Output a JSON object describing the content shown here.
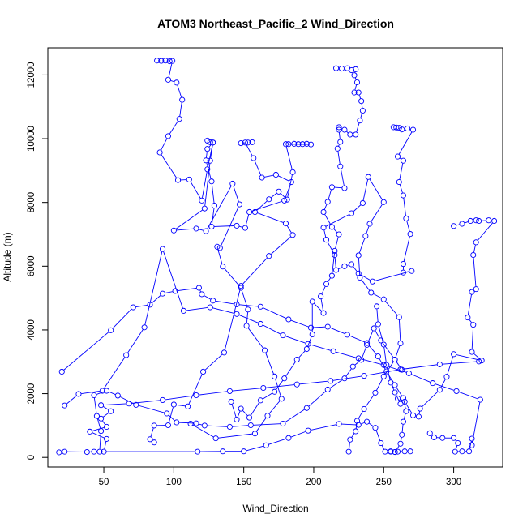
{
  "chart_data": {
    "type": "line",
    "title": "ATOM3 Northeast_Pacific_2 Wind_Direction",
    "xlabel": "Wind_Direction",
    "ylabel": "Altitude (m)",
    "xlim": [
      10,
      335
    ],
    "ylim": [
      -300,
      12850
    ],
    "x_ticks": [
      50,
      100,
      150,
      200,
      250,
      300
    ],
    "x_tick_labels": [
      "50",
      "100",
      "150",
      "200",
      "250",
      "300"
    ],
    "y_ticks": [
      0,
      2000,
      4000,
      6000,
      8000,
      10000,
      12000
    ],
    "y_tick_labels": [
      "0",
      "2000",
      "4000",
      "6000",
      "8000",
      "10000",
      "12000"
    ],
    "grid": false,
    "legend": "none",
    "series_color": "#0000ff",
    "marker": "open-circle",
    "series": [
      {
        "values": [
          [
            88,
            12450
          ],
          [
            91,
            12440
          ],
          [
            94,
            12450
          ],
          [
            97,
            12430
          ],
          [
            99,
            12440
          ],
          [
            96,
            11850
          ],
          [
            102,
            11760
          ],
          [
            106,
            11220
          ],
          [
            104,
            10620
          ],
          [
            96,
            10080
          ],
          [
            90,
            9570
          ],
          [
            103,
            8700
          ],
          [
            111,
            8720
          ],
          [
            120,
            8060
          ],
          [
            124,
            9040
          ],
          [
            128,
            9880
          ],
          [
            126,
            9310
          ],
          [
            122,
            7810
          ],
          [
            100,
            7120
          ],
          [
            116,
            7180
          ],
          [
            123,
            7100
          ],
          [
            142,
            8590
          ],
          [
            147,
            7940
          ],
          [
            133,
            6570
          ],
          [
            131,
            6610
          ],
          [
            135,
            5990
          ],
          [
            148,
            5320
          ],
          [
            153,
            4640
          ],
          [
            152,
            4130
          ],
          [
            165,
            3360
          ],
          [
            172,
            2540
          ],
          [
            177,
            1840
          ],
          [
            167,
            1310
          ],
          [
            158,
            750
          ],
          [
            130,
            600
          ],
          [
            112,
            1060
          ]
        ]
      },
      {
        "values": [
          [
            124,
            9940
          ],
          [
            126,
            9890
          ],
          [
            128,
            9880
          ],
          [
            124,
            9680
          ],
          [
            123,
            9320
          ],
          [
            127,
            8660
          ],
          [
            129,
            7900
          ],
          [
            127,
            7240
          ],
          [
            145,
            7270
          ],
          [
            151,
            7200
          ],
          [
            154,
            7700
          ],
          [
            179,
            8060
          ],
          [
            184,
            8640
          ],
          [
            173,
            8870
          ],
          [
            163,
            8780
          ],
          [
            157,
            9390
          ],
          [
            151,
            9880
          ],
          [
            148,
            9860
          ],
          [
            153,
            9880
          ],
          [
            156,
            9890
          ]
        ]
      },
      {
        "values": [
          [
            182,
            9830
          ],
          [
            186,
            9840
          ],
          [
            189,
            9830
          ],
          [
            192,
            9830
          ],
          [
            195,
            9840
          ],
          [
            198,
            9820
          ],
          [
            180,
            9830
          ],
          [
            185,
            8950
          ],
          [
            181,
            8090
          ],
          [
            175,
            8340
          ],
          [
            168,
            8100
          ],
          [
            158,
            7700
          ],
          [
            180,
            7340
          ],
          [
            185,
            6980
          ],
          [
            168,
            6320
          ],
          [
            148,
            5380
          ],
          [
            136,
            3290
          ],
          [
            121,
            2690
          ],
          [
            110,
            1600
          ],
          [
            100,
            1660
          ],
          [
            96,
            1010
          ],
          [
            86,
            1000
          ],
          [
            83,
            570
          ],
          [
            86,
            470
          ]
        ]
      },
      {
        "values": [
          [
            216,
            12210
          ],
          [
            220,
            12200
          ],
          [
            224,
            12210
          ],
          [
            227,
            12150
          ],
          [
            230,
            12180
          ],
          [
            229,
            11990
          ],
          [
            231,
            11770
          ],
          [
            229,
            11450
          ],
          [
            232,
            11450
          ],
          [
            234,
            11180
          ],
          [
            235,
            10880
          ],
          [
            233,
            10570
          ],
          [
            230,
            10130
          ],
          [
            226,
            10130
          ],
          [
            222,
            10280
          ],
          [
            218,
            10360
          ],
          [
            218,
            10280
          ],
          [
            219,
            9900
          ],
          [
            217,
            9690
          ],
          [
            219,
            9130
          ],
          [
            222,
            8450
          ],
          [
            213,
            8480
          ],
          [
            210,
            8020
          ],
          [
            207,
            7700
          ],
          [
            213,
            7230
          ],
          [
            218,
            7000
          ],
          [
            215,
            6480
          ],
          [
            213,
            5700
          ],
          [
            209,
            5440
          ],
          [
            205,
            5050
          ],
          [
            207,
            4530
          ],
          [
            199,
            4890
          ],
          [
            199,
            3860
          ],
          [
            195,
            3400
          ],
          [
            188,
            3070
          ],
          [
            179,
            2480
          ],
          [
            172,
            2060
          ],
          [
            162,
            1790
          ],
          [
            154,
            1250
          ],
          [
            148,
            1530
          ],
          [
            145,
            1190
          ],
          [
            141,
            1750
          ]
        ]
      },
      {
        "values": [
          [
            257,
            10360
          ],
          [
            259,
            10350
          ],
          [
            261,
            10340
          ],
          [
            263,
            10290
          ],
          [
            267,
            10320
          ],
          [
            271,
            10280
          ],
          [
            260,
            9440
          ],
          [
            264,
            9310
          ],
          [
            261,
            8640
          ],
          [
            264,
            8220
          ],
          [
            266,
            7500
          ],
          [
            269,
            7010
          ],
          [
            264,
            6070
          ],
          [
            264,
            5800
          ],
          [
            270,
            5850
          ],
          [
            242,
            5520
          ],
          [
            232,
            5770
          ],
          [
            227,
            6060
          ],
          [
            222,
            6000
          ],
          [
            216,
            5880
          ],
          [
            215,
            6350
          ],
          [
            209,
            6830
          ],
          [
            207,
            7210
          ],
          [
            227,
            7660
          ],
          [
            235,
            7980
          ],
          [
            239,
            8800
          ],
          [
            250,
            8010
          ],
          [
            240,
            7330
          ],
          [
            237,
            6950
          ],
          [
            232,
            6340
          ],
          [
            233,
            5640
          ],
          [
            241,
            5170
          ],
          [
            250,
            4960
          ],
          [
            261,
            4400
          ],
          [
            262,
            3580
          ],
          [
            258,
            3070
          ],
          [
            250,
            2540
          ],
          [
            244,
            2030
          ],
          [
            236,
            1520
          ],
          [
            231,
            1150
          ],
          [
            230,
            820
          ],
          [
            226,
            560
          ],
          [
            225,
            180
          ]
        ]
      },
      {
        "values": [
          [
            300,
            7260
          ],
          [
            306,
            7330
          ],
          [
            312,
            7420
          ],
          [
            316,
            7440
          ],
          [
            318,
            7420
          ],
          [
            325,
            7440
          ],
          [
            329,
            7420
          ],
          [
            316,
            6750
          ],
          [
            314,
            6350
          ],
          [
            316,
            5280
          ],
          [
            313,
            5190
          ],
          [
            310,
            4390
          ],
          [
            314,
            4160
          ],
          [
            313,
            3310
          ],
          [
            320,
            3040
          ],
          [
            300,
            3240
          ],
          [
            295,
            2530
          ],
          [
            290,
            2120
          ],
          [
            276,
            1530
          ],
          [
            275,
            1280
          ],
          [
            271,
            1320
          ],
          [
            265,
            1750
          ],
          [
            260,
            1850
          ],
          [
            262,
            1680
          ],
          [
            258,
            2040
          ],
          [
            255,
            2350
          ],
          [
            252,
            2900
          ],
          [
            250,
            3540
          ],
          [
            246,
            4180
          ],
          [
            245,
            4740
          ]
        ]
      },
      {
        "values": [
          [
            18,
            160
          ],
          [
            22,
            180
          ],
          [
            38,
            170
          ],
          [
            43,
            180
          ],
          [
            47,
            180
          ],
          [
            48,
            830
          ],
          [
            45,
            1300
          ],
          [
            43,
            1950
          ],
          [
            52,
            2090
          ],
          [
            60,
            1940
          ],
          [
            73,
            1650
          ],
          [
            95,
            1380
          ],
          [
            102,
            1100
          ],
          [
            116,
            1070
          ],
          [
            122,
            1000
          ],
          [
            140,
            960
          ],
          [
            155,
            1010
          ],
          [
            178,
            1060
          ],
          [
            195,
            1550
          ],
          [
            210,
            2130
          ],
          [
            222,
            2480
          ],
          [
            228,
            2850
          ],
          [
            234,
            3060
          ],
          [
            238,
            3530
          ],
          [
            243,
            4050
          ],
          [
            248,
            3670
          ],
          [
            258,
            3070
          ],
          [
            263,
            2750
          ]
        ]
      },
      {
        "values": [
          [
            20,
            2690
          ],
          [
            55,
            3990
          ],
          [
            71,
            4710
          ],
          [
            83,
            4790
          ],
          [
            92,
            5140
          ],
          [
            101,
            5220
          ],
          [
            118,
            5320
          ],
          [
            120,
            5120
          ],
          [
            128,
            4920
          ],
          [
            145,
            4800
          ],
          [
            162,
            4730
          ],
          [
            182,
            4330
          ],
          [
            198,
            4070
          ],
          [
            210,
            4100
          ],
          [
            224,
            3850
          ],
          [
            238,
            3590
          ],
          [
            246,
            3170
          ],
          [
            252,
            2700
          ],
          [
            258,
            2270
          ],
          [
            264,
            1860
          ],
          [
            266,
            1450
          ],
          [
            264,
            1120
          ],
          [
            263,
            710
          ],
          [
            262,
            430
          ],
          [
            258,
            170
          ],
          [
            255,
            180
          ]
        ]
      },
      {
        "values": [
          [
            318,
            3010
          ],
          [
            290,
            2920
          ],
          [
            262,
            2760
          ],
          [
            236,
            2560
          ],
          [
            212,
            2400
          ],
          [
            188,
            2290
          ],
          [
            164,
            2180
          ],
          [
            140,
            2080
          ],
          [
            116,
            1950
          ],
          [
            92,
            1800
          ],
          [
            68,
            1690
          ],
          [
            48,
            1640
          ],
          [
            55,
            1450
          ],
          [
            48,
            1220
          ],
          [
            52,
            960
          ],
          [
            40,
            810
          ],
          [
            52,
            580
          ],
          [
            50,
            180
          ],
          [
            117,
            180
          ],
          [
            135,
            190
          ],
          [
            150,
            190
          ],
          [
            166,
            380
          ],
          [
            182,
            610
          ],
          [
            196,
            840
          ],
          [
            218,
            1050
          ],
          [
            232,
            1020
          ],
          [
            238,
            1120
          ],
          [
            244,
            930
          ],
          [
            248,
            450
          ],
          [
            251,
            180
          ],
          [
            255,
            190
          ],
          [
            258,
            170
          ],
          [
            260,
            180
          ],
          [
            265,
            190
          ],
          [
            269,
            190
          ]
        ]
      },
      {
        "values": [
          [
            283,
            760
          ],
          [
            286,
            630
          ],
          [
            292,
            610
          ],
          [
            300,
            610
          ],
          [
            303,
            450
          ],
          [
            301,
            180
          ],
          [
            306,
            190
          ],
          [
            311,
            190
          ],
          [
            313,
            590
          ],
          [
            313,
            380
          ],
          [
            319,
            1810
          ],
          [
            302,
            2080
          ],
          [
            285,
            2330
          ],
          [
            268,
            2640
          ],
          [
            250,
            2900
          ],
          [
            232,
            3110
          ],
          [
            214,
            3330
          ],
          [
            196,
            3560
          ],
          [
            178,
            3830
          ],
          [
            162,
            4190
          ],
          [
            145,
            4500
          ],
          [
            126,
            4710
          ],
          [
            107,
            4600
          ],
          [
            92,
            6540
          ],
          [
            79,
            4080
          ],
          [
            66,
            3210
          ],
          [
            49,
            2090
          ],
          [
            32,
            1990
          ],
          [
            22,
            1630
          ]
        ]
      }
    ]
  }
}
